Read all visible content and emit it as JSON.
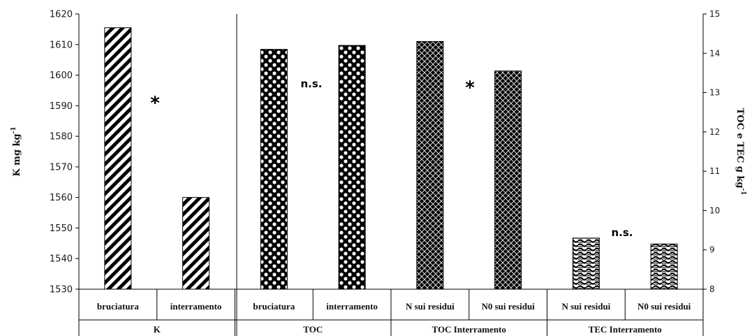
{
  "chart_data": {
    "type": "bar",
    "title": "",
    "ylabel": "K  mg kg-1",
    "y2label": "TOC e TEC g kg-1",
    "ylim": [
      1530,
      1620
    ],
    "y2lim": [
      8,
      15
    ],
    "yticks": [
      "1530",
      "1540",
      "1550",
      "1560",
      "1570",
      "1580",
      "1590",
      "1600",
      "1610",
      "1620"
    ],
    "y2ticks": [
      "8",
      "9",
      "10",
      "11",
      "12",
      "13",
      "14",
      "15"
    ],
    "categories": [
      "bruciatura",
      "interramento",
      "bruciatura",
      "interramento",
      "N sui residui",
      "N0 sui residui",
      "N sui residui",
      "N0 sui residui"
    ],
    "groups": [
      {
        "name": "K",
        "categories": [
          "bruciatura",
          "interramento"
        ],
        "axis": "left",
        "values": [
          1615.5,
          1560
        ],
        "pattern": "diagonal-stripes",
        "annotation": "*"
      },
      {
        "name": "TOC",
        "categories": [
          "bruciatura",
          "interramento"
        ],
        "axis": "right",
        "values": [
          14.1,
          14.2
        ],
        "pattern": "checker-dots",
        "annotation": "n.s."
      },
      {
        "name": "TOC Interramento",
        "categories": [
          "N sui residui",
          "N0 sui residui"
        ],
        "axis": "right",
        "values": [
          14.3,
          13.55
        ],
        "pattern": "crosshatch",
        "annotation": "*"
      },
      {
        "name": "TEC Interramento",
        "categories": [
          "N sui residui",
          "N0 sui residui"
        ],
        "axis": "right",
        "values": [
          9.3,
          9.15
        ],
        "pattern": "waves",
        "annotation": "n.s."
      }
    ],
    "grid": false,
    "legend": "none"
  }
}
